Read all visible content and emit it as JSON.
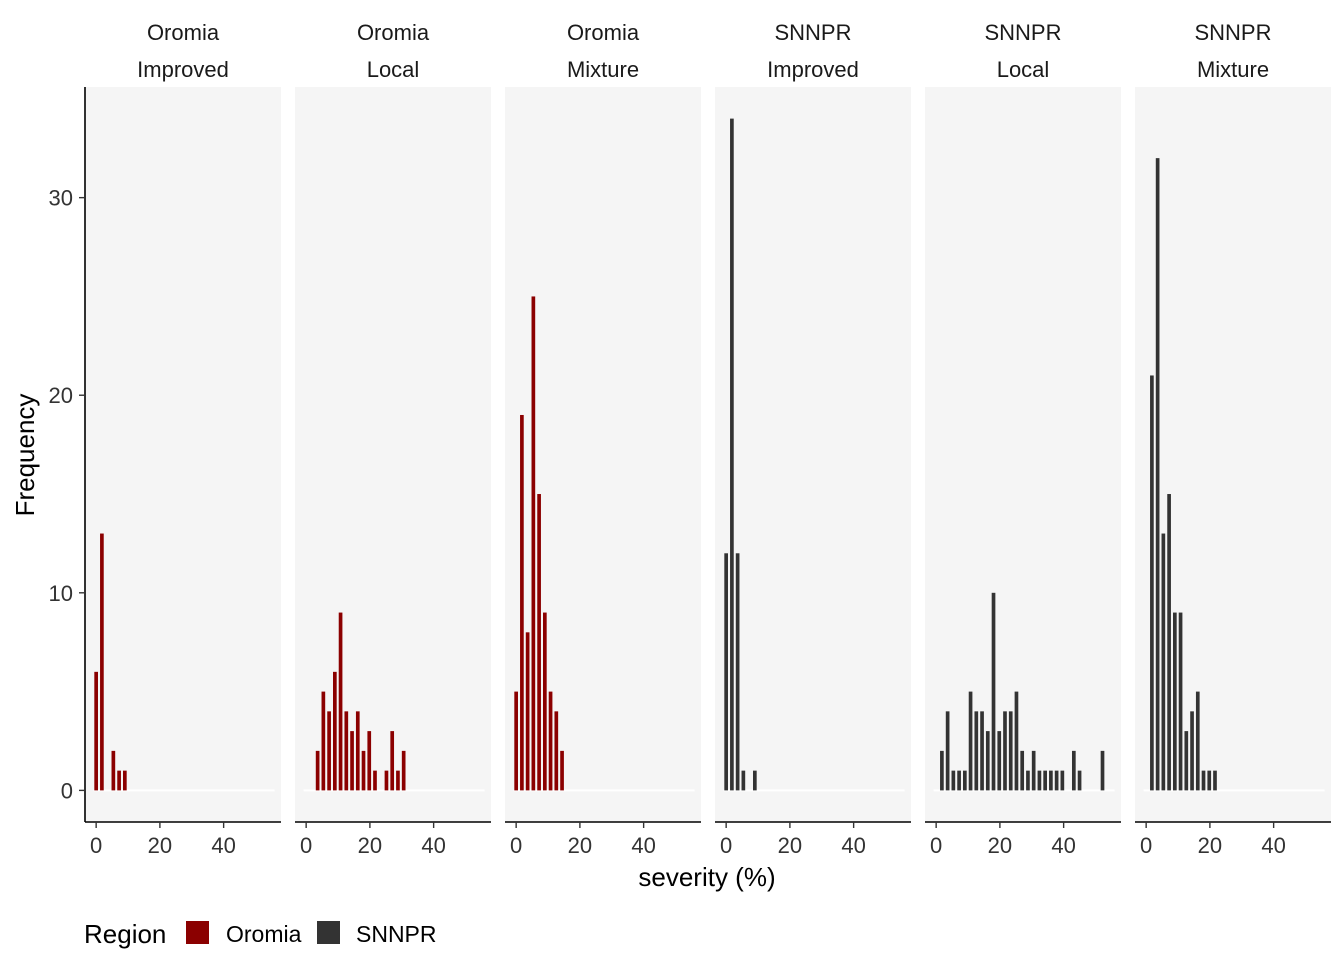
{
  "chart_data": {
    "type": "bar",
    "title": "",
    "xlabel": "severity (%)",
    "ylabel": "Frequency",
    "xlim": [
      -3.5,
      58
    ],
    "ylim": [
      -1.6,
      35.6
    ],
    "xticks": [
      0,
      20,
      40
    ],
    "yticks": [
      0,
      10,
      20,
      30
    ],
    "bin_width": 1.7,
    "legend": {
      "title": "Region",
      "placement": "bottom-left",
      "entries": [
        {
          "label": "Oromia",
          "color": "#8b0000"
        },
        {
          "label": "SNNPR",
          "color": "#333333"
        }
      ]
    },
    "panels": [
      {
        "region": "Oromia",
        "variety": "Improved",
        "color": "#8b0000",
        "x": [
          0,
          1.8,
          3.6,
          5.4,
          7.2,
          9.0
        ],
        "values": [
          6,
          13,
          0,
          2,
          1,
          1
        ]
      },
      {
        "region": "Oromia",
        "variety": "Local",
        "color": "#8b0000",
        "x": [
          3.6,
          5.4,
          7.2,
          9.0,
          10.8,
          12.6,
          14.4,
          16.2,
          18.0,
          19.8,
          21.6,
          23.4,
          25.2,
          27.0,
          28.8,
          30.6,
          32.4
        ],
        "values": [
          2,
          5,
          4,
          6,
          9,
          4,
          3,
          4,
          2,
          3,
          1,
          0,
          1,
          3,
          1,
          2,
          0
        ]
      },
      {
        "region": "Oromia",
        "variety": "Mixture",
        "color": "#8b0000",
        "x": [
          0,
          1.8,
          3.6,
          5.4,
          7.2,
          9.0,
          10.8,
          12.6,
          14.4
        ],
        "values": [
          5,
          19,
          8,
          25,
          15,
          9,
          5,
          4,
          2
        ]
      },
      {
        "region": "SNNPR",
        "variety": "Improved",
        "color": "#333333",
        "x": [
          0,
          1.8,
          3.6,
          5.4,
          7.2,
          9.0
        ],
        "values": [
          12,
          34,
          12,
          1,
          0,
          1
        ]
      },
      {
        "region": "SNNPR",
        "variety": "Local",
        "color": "#333333",
        "x": [
          1.8,
          3.6,
          5.4,
          7.2,
          9.0,
          10.8,
          12.6,
          14.4,
          16.2,
          18.0,
          19.8,
          21.6,
          23.4,
          25.2,
          27.0,
          28.8,
          30.6,
          32.4,
          34.2,
          36.0,
          37.8,
          39.6,
          41.4,
          43.2,
          45.0,
          46.8,
          48.6,
          50.4,
          52.2,
          54.0
        ],
        "values": [
          2,
          4,
          1,
          1,
          1,
          5,
          4,
          4,
          3,
          10,
          3,
          4,
          4,
          5,
          2,
          1,
          2,
          1,
          1,
          1,
          1,
          1,
          0,
          2,
          1,
          0,
          0,
          0,
          2,
          0
        ]
      },
      {
        "region": "SNNPR",
        "variety": "Mixture",
        "color": "#333333",
        "x": [
          1.8,
          3.6,
          5.4,
          7.2,
          9.0,
          10.8,
          12.6,
          14.4,
          16.2,
          18.0,
          19.8,
          21.6
        ],
        "values": [
          21,
          32,
          13,
          15,
          9,
          9,
          3,
          4,
          5,
          1,
          1,
          1
        ]
      }
    ]
  }
}
